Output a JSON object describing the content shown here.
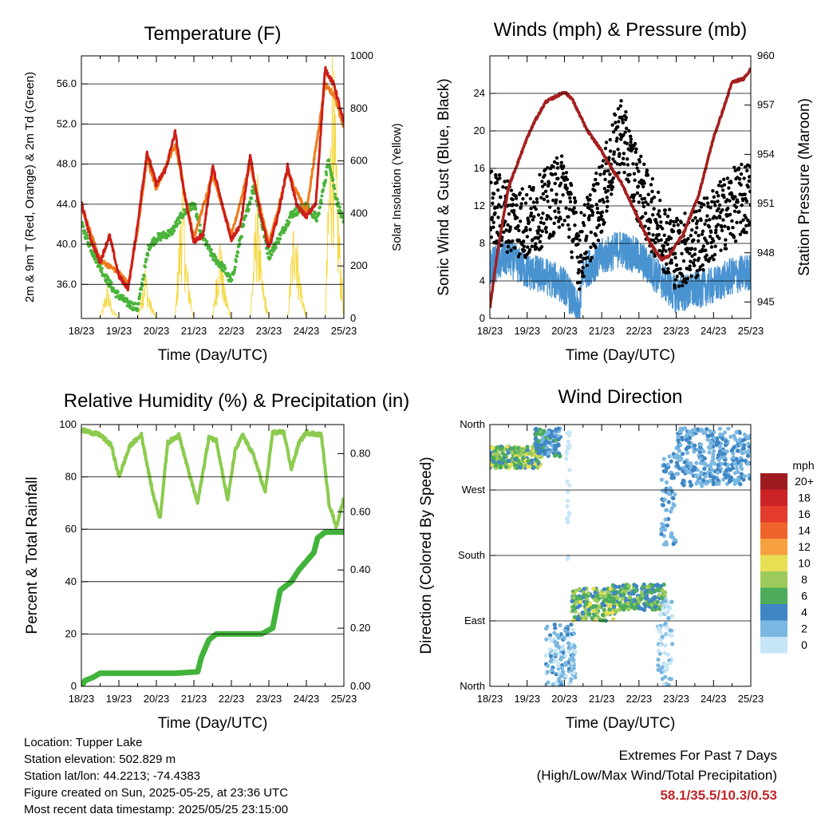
{
  "time_ticks": [
    "18/23",
    "19/23",
    "20/23",
    "21/23",
    "22/23",
    "23/23",
    "24/23",
    "25/23"
  ],
  "xlabel": "Time (Day/UTC)",
  "colors": {
    "temp2m": "#cc1f1a",
    "temp9m": "#f07c1e",
    "dewpoint": "#4ab43a",
    "solar": "#f5d947",
    "wind": "#4a93d1",
    "gust": "#000000",
    "pressure": "#a41f1f",
    "rh": "#8ccb4f",
    "rain": "#42b33a"
  },
  "panels": {
    "temperature": {
      "title": "Temperature (F)",
      "ylabel_left": "2m & 9m T (Red, Orange) & 2m Td (Green)",
      "ylabel_right": "Solar Insolation (Yellow)"
    },
    "winds": {
      "title": "Winds (mph) & Pressure (mb)",
      "ylabel_left": "Sonic Wind & Gust (Blue, Black)",
      "ylabel_right": "Station Pressure (Maroon)"
    },
    "humidity": {
      "title": "Relative Humidity (%) & Precipitation (in)",
      "ylabel_left": "Percent & Total Rainfall"
    },
    "direction": {
      "title": "Wind Direction",
      "ylabel_left": "Direction (Colored By Speed)"
    }
  },
  "legend": {
    "unit": "mph",
    "labels": [
      "20+",
      "18",
      "16",
      "14",
      "12",
      "10",
      "8",
      "6",
      "4",
      "2",
      "0"
    ],
    "colors": [
      "#9e1b1f",
      "#cc2326",
      "#e33b2c",
      "#f0642c",
      "#f7a040",
      "#e8df55",
      "#9ccb5c",
      "#4cac5c",
      "#3f86c4",
      "#7ab8e2",
      "#c6e5f6"
    ]
  },
  "info": {
    "location": "Location: Tupper Lake",
    "elevation": "Station elevation: 502.829 m",
    "latlon": "Station lat/lon: 44.2213; -74.4383",
    "created": "Figure created on Sun, 2025-05-25, at 23:36 UTC",
    "recent": "Most recent data timestamp: 2025/05/25 23:15:00"
  },
  "extremes": {
    "line1": "Extremes For Past 7 Days",
    "line2": "(High/Low/Max Wind/Total Precipitation)",
    "values": "58.1/35.5/10.3/0.53"
  },
  "chart_data": [
    {
      "type": "line",
      "title": "Temperature (F)",
      "xlabel": "Time (Day/UTC)",
      "ylabel": "2m & 9m T (Red, Orange) & 2m Td (Green)",
      "y2label": "Solar Insolation (Yellow)",
      "x_days": [
        0,
        7
      ],
      "ylim": [
        32.6,
        58.8
      ],
      "yticks": [
        "36.0",
        "40.0",
        "44.0",
        "48.0",
        "52.0",
        "56.0"
      ],
      "y2lim": [
        0,
        1000
      ],
      "y2ticks": [
        "0",
        "200",
        "400",
        "600",
        "800",
        "1000"
      ],
      "series": [
        {
          "name": "2m T",
          "axis": "left",
          "x": [
            0,
            0.25,
            0.5,
            0.75,
            1.0,
            1.25,
            1.5,
            1.75,
            2.0,
            2.25,
            2.5,
            2.75,
            3.0,
            3.25,
            3.5,
            3.75,
            4.0,
            4.25,
            4.5,
            4.75,
            5.0,
            5.25,
            5.5,
            5.75,
            6.0,
            6.25,
            6.5,
            6.75,
            7.0
          ],
          "y": [
            44.2,
            40.5,
            38.2,
            40.9,
            36.8,
            35.6,
            42.0,
            49.2,
            46.0,
            47.5,
            51.2,
            45.0,
            40.2,
            41.0,
            47.8,
            44.0,
            40.5,
            42.0,
            48.8,
            43.5,
            39.5,
            43.0,
            47.8,
            43.8,
            42.8,
            44.0,
            57.5,
            55.8,
            52.0
          ]
        },
        {
          "name": "9m T",
          "axis": "left",
          "x": [
            0,
            0.5,
            1.0,
            1.25,
            1.5,
            1.75,
            2.0,
            2.5,
            2.75,
            3.0,
            3.5,
            4.0,
            4.5,
            5.0,
            5.5,
            6.0,
            6.5,
            6.75,
            7.0
          ],
          "y": [
            43.8,
            38.4,
            37.2,
            36.0,
            41.5,
            48.5,
            45.5,
            50.0,
            45.2,
            40.6,
            47.0,
            40.8,
            48.0,
            40.0,
            47.2,
            43.2,
            56.0,
            54.8,
            51.6
          ]
        },
        {
          "name": "2m Td",
          "axis": "left",
          "x": [
            0,
            0.3,
            0.6,
            0.9,
            1.2,
            1.5,
            1.8,
            2.0,
            2.4,
            2.7,
            3.0,
            3.2,
            3.5,
            3.8,
            4.0,
            4.3,
            4.6,
            5.0,
            5.3,
            5.6,
            6.0,
            6.3,
            6.6,
            6.8,
            7.0
          ],
          "y": [
            42.0,
            39.2,
            37.0,
            35.2,
            34.2,
            33.6,
            39.8,
            40.6,
            41.2,
            43.0,
            44.0,
            41.0,
            38.8,
            37.6,
            36.2,
            41.6,
            45.8,
            38.8,
            40.8,
            43.0,
            43.8,
            42.5,
            48.5,
            44.5,
            42.0
          ]
        },
        {
          "name": "Solar",
          "axis": "right",
          "x": [
            0,
            0.5,
            0.7,
            0.8,
            1.0,
            1.5,
            1.7,
            1.8,
            2.0,
            2.5,
            2.7,
            2.8,
            3.0,
            3.5,
            3.7,
            3.8,
            4.0,
            4.5,
            4.7,
            4.8,
            5.0,
            5.5,
            5.7,
            5.8,
            6.0,
            6.5,
            6.7,
            6.8,
            7.0
          ],
          "y": [
            0,
            0,
            120,
            40,
            0,
            0,
            180,
            80,
            0,
            0,
            520,
            200,
            0,
            0,
            300,
            120,
            0,
            0,
            480,
            160,
            0,
            0,
            420,
            180,
            0,
            0,
            980,
            520,
            0
          ]
        }
      ]
    },
    {
      "type": "line",
      "title": "Winds (mph) & Pressure (mb)",
      "xlabel": "Time (Day/UTC)",
      "ylabel": "Sonic Wind & Gust (Blue, Black)",
      "y2label": "Station Pressure (Maroon)",
      "x_days": [
        0,
        7
      ],
      "ylim": [
        0,
        28
      ],
      "yticks": [
        "0",
        "4",
        "8",
        "12",
        "16",
        "20",
        "24"
      ],
      "y2lim": [
        944.0,
        960.0
      ],
      "y2ticks": [
        "945",
        "948",
        "951",
        "954",
        "957",
        "960"
      ],
      "series": [
        {
          "name": "Wind",
          "axis": "left",
          "x": [
            0,
            0.5,
            1.0,
            1.5,
            2.0,
            2.4,
            2.5,
            3.0,
            3.5,
            4.0,
            4.5,
            5.0,
            5.5,
            6.0,
            6.5,
            7.0
          ],
          "y": [
            5.5,
            6.5,
            5.0,
            4.5,
            3.5,
            0.5,
            5.0,
            6.5,
            7.5,
            6.5,
            4.5,
            2.5,
            3.0,
            3.5,
            4.5,
            5.0
          ]
        },
        {
          "name": "Gust",
          "axis": "left",
          "x": [
            0,
            0.5,
            1.0,
            1.5,
            2.0,
            2.4,
            2.6,
            3.0,
            3.5,
            3.8,
            4.2,
            4.5,
            5.0,
            5.5,
            6.0,
            6.5,
            7.0
          ],
          "y": [
            12,
            11,
            10,
            12,
            14,
            7,
            9,
            13,
            20,
            16,
            12,
            10,
            7,
            8,
            10,
            12,
            13
          ]
        },
        {
          "name": "Pressure",
          "axis": "right",
          "x": [
            0,
            0.2,
            0.5,
            1.0,
            1.2,
            1.5,
            2.0,
            2.2,
            2.6,
            3.0,
            3.3,
            3.5,
            4.0,
            4.3,
            4.6,
            4.8,
            5.2,
            5.6,
            6.0,
            6.3,
            6.5,
            6.8,
            7.0
          ],
          "y": [
            944.6,
            948.0,
            952.0,
            955.0,
            956.0,
            957.2,
            957.8,
            957.4,
            955.5,
            954.2,
            953.0,
            952.4,
            950.0,
            948.6,
            947.6,
            947.8,
            949.2,
            951.5,
            955.0,
            957.0,
            958.4,
            958.6,
            959.2
          ]
        }
      ]
    },
    {
      "type": "line",
      "title": "Relative Humidity (%) & Precipitation (in)",
      "xlabel": "Time (Day/UTC)",
      "ylabel": "Percent & Total Rainfall",
      "x_days": [
        0,
        7
      ],
      "ylim": [
        0,
        100
      ],
      "yticks": [
        "0",
        "20",
        "40",
        "60",
        "80",
        "100"
      ],
      "y2lim": [
        0,
        0.9
      ],
      "y2ticks": [
        "0.00",
        "0.20",
        "0.40",
        "0.60",
        "0.80"
      ],
      "series": [
        {
          "name": "RH",
          "axis": "left",
          "x": [
            0,
            0.5,
            0.8,
            1.0,
            1.3,
            1.6,
            1.9,
            2.1,
            2.3,
            2.6,
            2.9,
            3.1,
            3.4,
            3.6,
            3.9,
            4.1,
            4.3,
            4.6,
            4.9,
            5.1,
            5.4,
            5.6,
            5.8,
            6.0,
            6.4,
            6.6,
            6.8,
            7.0
          ],
          "y": [
            98,
            96,
            92,
            80,
            92,
            96,
            74,
            64,
            93,
            96,
            80,
            70,
            95,
            94,
            71,
            90,
            96,
            88,
            74,
            97,
            97,
            83,
            93,
            97,
            96,
            70,
            61,
            72
          ]
        },
        {
          "name": "Precipitation",
          "axis": "right",
          "x": [
            0,
            0.1,
            0.3,
            0.5,
            2.5,
            3.1,
            3.2,
            3.4,
            3.6,
            4.8,
            5.1,
            5.3,
            5.6,
            5.8,
            6.0,
            6.2,
            6.3,
            6.5,
            7.0
          ],
          "y": [
            0.0,
            0.02,
            0.03,
            0.045,
            0.045,
            0.05,
            0.1,
            0.16,
            0.18,
            0.18,
            0.2,
            0.33,
            0.36,
            0.4,
            0.43,
            0.46,
            0.51,
            0.53,
            0.53
          ]
        }
      ]
    },
    {
      "type": "scatter",
      "title": "Wind Direction",
      "xlabel": "Time (Day/UTC)",
      "ylabel": "Direction (Colored By Speed)",
      "x_days": [
        0,
        7
      ],
      "ylim": [
        0,
        360
      ],
      "yticks": [
        "North",
        "East",
        "South",
        "West",
        "North"
      ],
      "clusters": [
        {
          "x": [
            0,
            1.4
          ],
          "dir": [
            300,
            330
          ],
          "speed": [
            4,
            10
          ]
        },
        {
          "x": [
            1.2,
            1.9
          ],
          "dir": [
            315,
            355
          ],
          "speed": [
            2,
            6
          ]
        },
        {
          "x": [
            1.5,
            2.3
          ],
          "dir": [
            0,
            85
          ],
          "speed": [
            0,
            4
          ]
        },
        {
          "x": [
            2.2,
            3.4
          ],
          "dir": [
            90,
            135
          ],
          "speed": [
            3,
            10
          ]
        },
        {
          "x": [
            3.3,
            4.7
          ],
          "dir": [
            105,
            140
          ],
          "speed": [
            3,
            9
          ]
        },
        {
          "x": [
            4.5,
            4.9
          ],
          "dir": [
            0,
            120
          ],
          "speed": [
            0,
            2
          ]
        },
        {
          "x": [
            4.6,
            5.0
          ],
          "dir": [
            195,
            320
          ],
          "speed": [
            1,
            4
          ]
        },
        {
          "x": [
            5.0,
            7.0
          ],
          "dir": [
            275,
            355
          ],
          "speed": [
            1,
            5
          ]
        },
        {
          "x": [
            2.05,
            2.15
          ],
          "dir": [
            175,
            355
          ],
          "speed": [
            0,
            1
          ]
        }
      ]
    }
  ]
}
